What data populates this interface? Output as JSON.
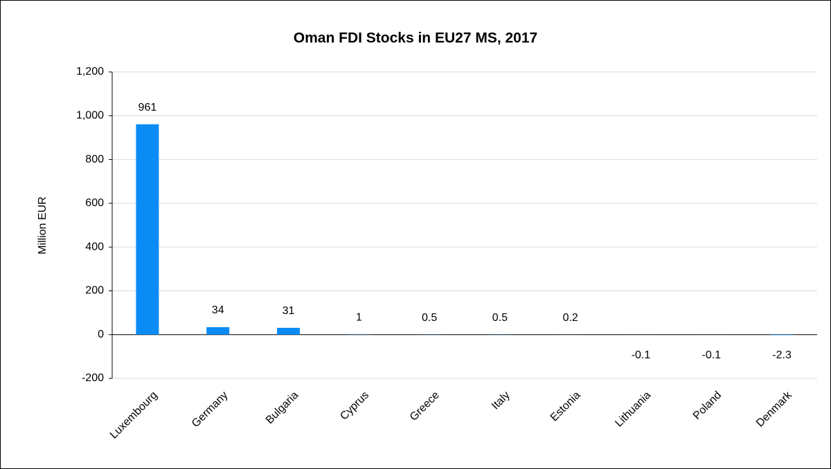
{
  "chart_data": {
    "type": "bar",
    "title": "Oman FDI Stocks in EU27 MS, 2017",
    "y_label": "Million EUR",
    "categories": [
      "Luxembourg",
      "Germany",
      "Bulgaria",
      "Cyprus",
      "Greece",
      "Italy",
      "Estonia",
      "Lithuania",
      "Poland",
      "Denmark"
    ],
    "values": [
      961,
      34,
      31,
      1,
      0.5,
      0.5,
      0.2,
      -0.1,
      -0.1,
      -2.3
    ],
    "color": "#0b8cf5",
    "ylim": [
      -200,
      1200
    ],
    "yticks": [
      -200,
      0,
      200,
      400,
      600,
      800,
      {
        "value": 1000,
        "label": "1,000"
      },
      {
        "value": 1200,
        "label": "1,200"
      }
    ],
    "grid": true
  }
}
